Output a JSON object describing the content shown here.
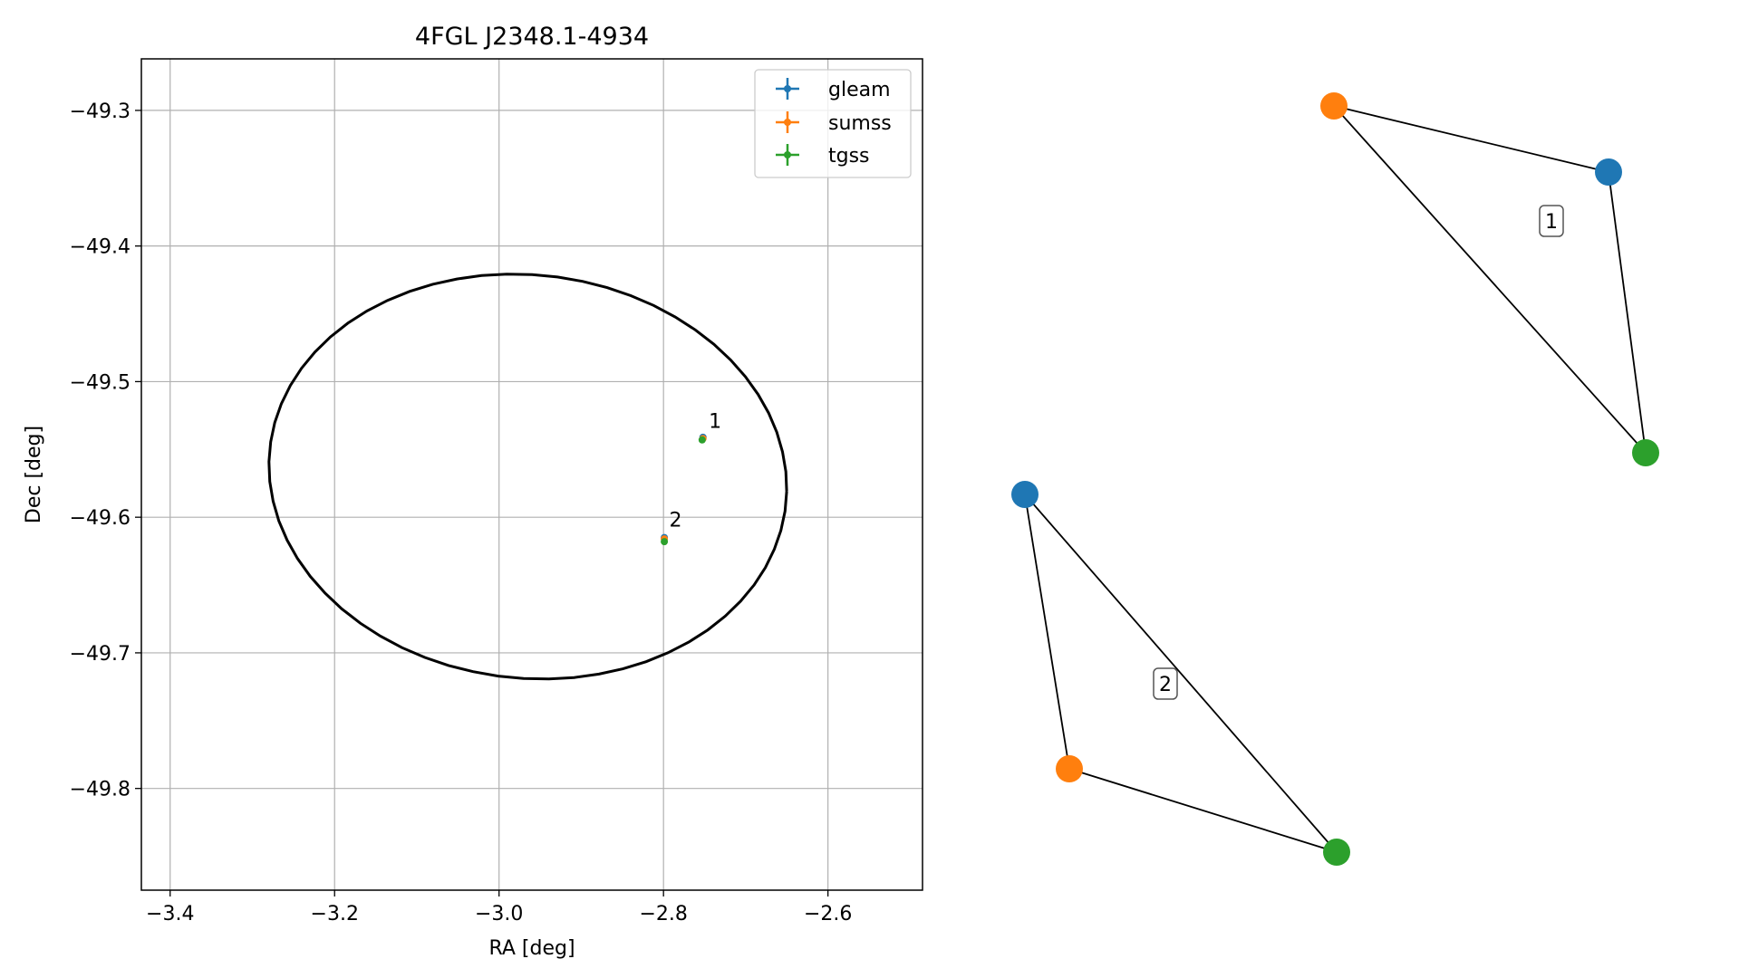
{
  "chart_data": [
    {
      "type": "scatter",
      "title": "4FGL J2348.1-4934",
      "xlabel": "RA [deg]",
      "ylabel": "Dec [deg]",
      "xlim": [
        -3.435,
        -2.485
      ],
      "ylim": [
        -49.875,
        -49.262
      ],
      "x_ticks": [
        -3.4,
        -3.2,
        -3.0,
        -2.8,
        -2.6
      ],
      "x_tick_labels": [
        "−3.4",
        "−3.2",
        "−3.0",
        "−2.8",
        "−2.6"
      ],
      "y_ticks": [
        -49.3,
        -49.4,
        -49.5,
        -49.6,
        -49.7,
        -49.8
      ],
      "y_tick_labels": [
        "−49.3",
        "−49.4",
        "−49.5",
        "−49.6",
        "−49.7",
        "−49.8"
      ],
      "grid": true,
      "legend_position": "upper right",
      "colors": {
        "gleam": "#1f77b4",
        "sumss": "#ff7f0e",
        "tgss": "#2ca02c",
        "ellipse": "#000000"
      },
      "ellipse": {
        "center": [
          -2.965,
          -49.57
        ],
        "width_ra": 0.63,
        "height_dec": 0.298,
        "angle_deg": -2
      },
      "series": [
        {
          "name": "gleam",
          "x": [
            -2.752,
            -2.799
          ],
          "y": [
            -49.541,
            -49.615
          ]
        },
        {
          "name": "sumss",
          "x": [
            -2.752,
            -2.799
          ],
          "y": [
            -49.542,
            -49.616
          ]
        },
        {
          "name": "tgss",
          "x": [
            -2.753,
            -2.799
          ],
          "y": [
            -49.543,
            -49.618
          ]
        }
      ],
      "annotations": [
        {
          "text": "1",
          "x": -2.745,
          "y": -49.534
        },
        {
          "text": "2",
          "x": -2.793,
          "y": -49.607
        }
      ]
    },
    {
      "type": "graph",
      "description_nodes": [
        "gleam",
        "sumss",
        "tgss"
      ],
      "groups": [
        {
          "label": "1",
          "members": [
            "sumss",
            "gleam",
            "tgss"
          ]
        },
        {
          "label": "2",
          "members": [
            "gleam",
            "sumss",
            "tgss"
          ]
        }
      ]
    }
  ]
}
